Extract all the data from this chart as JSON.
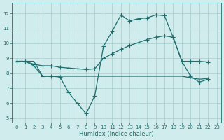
{
  "title": "",
  "xlabel": "Humidex (Indice chaleur)",
  "xlim": [
    -0.5,
    23.5
  ],
  "ylim": [
    4.7,
    12.7
  ],
  "yticks": [
    5,
    6,
    7,
    8,
    9,
    10,
    11,
    12
  ],
  "xticks": [
    0,
    1,
    2,
    3,
    4,
    5,
    6,
    7,
    8,
    9,
    10,
    11,
    12,
    13,
    14,
    15,
    16,
    17,
    18,
    19,
    20,
    21,
    22,
    23
  ],
  "background_color": "#d0ecec",
  "grid_color": "#a8cccc",
  "line_color": "#1e6e6e",
  "line1_x": [
    0,
    1,
    2,
    3,
    4,
    5,
    6,
    7,
    8,
    9,
    10,
    11,
    12,
    13,
    14,
    15,
    16,
    17,
    18,
    19,
    20,
    21,
    22
  ],
  "line1_y": [
    8.8,
    8.8,
    8.5,
    7.8,
    7.8,
    7.75,
    6.7,
    6.0,
    5.3,
    6.5,
    9.8,
    10.8,
    11.9,
    11.5,
    11.65,
    11.7,
    11.9,
    11.85,
    10.4,
    8.8,
    7.8,
    7.4,
    7.6
  ],
  "line2_x": [
    0,
    1,
    2,
    3,
    4,
    5,
    6,
    7,
    8,
    9,
    10,
    11,
    12,
    13,
    14,
    15,
    16,
    17,
    18,
    19,
    20,
    21,
    22
  ],
  "line2_y": [
    8.8,
    8.8,
    8.6,
    8.5,
    8.5,
    8.4,
    8.35,
    8.3,
    8.25,
    8.3,
    9.0,
    9.3,
    9.6,
    9.85,
    10.05,
    10.25,
    10.4,
    10.5,
    10.4,
    8.8,
    8.8,
    8.8,
    8.75
  ],
  "line3_x": [
    0,
    1,
    2,
    3,
    4,
    5,
    6,
    7,
    8,
    9,
    10,
    11,
    12,
    13,
    14,
    15,
    16,
    17,
    18,
    19,
    20,
    21,
    22
  ],
  "line3_y": [
    8.8,
    8.8,
    8.8,
    7.8,
    7.8,
    7.8,
    7.8,
    7.8,
    7.8,
    7.8,
    7.8,
    7.8,
    7.8,
    7.8,
    7.8,
    7.8,
    7.8,
    7.8,
    7.8,
    7.8,
    7.7,
    7.6,
    7.65
  ],
  "markersize": 2.0,
  "linewidth": 0.9,
  "tick_labelsize": 5.0,
  "xlabel_fontsize": 6.0
}
